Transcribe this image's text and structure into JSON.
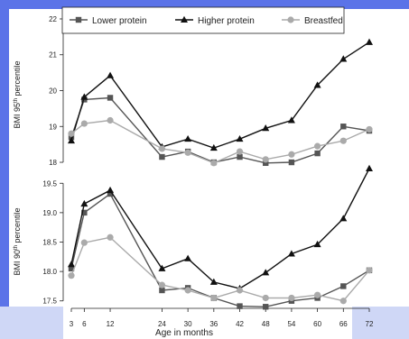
{
  "background": {
    "accent": "#5b73e8",
    "panel": "#ffffff",
    "lower_band": "#cfd7f6"
  },
  "chart_data": [
    {
      "type": "line",
      "title": "",
      "xlabel": "Age in months",
      "ylabel_main": "BMI 95",
      "ylabel_sup": "th",
      "ylabel_rest": " percentile",
      "x": [
        3,
        6,
        12,
        24,
        30,
        36,
        42,
        48,
        54,
        60,
        66,
        72
      ],
      "xticks": [
        3,
        6,
        12,
        24,
        30,
        36,
        42,
        48,
        54,
        60,
        66,
        72
      ],
      "ylim": [
        17.9,
        22.1
      ],
      "yticks": [
        18,
        19,
        20,
        21,
        22
      ],
      "legend": {
        "placement": "top",
        "entries": [
          "Lower protein",
          "Higher protein",
          "Breastfed"
        ]
      },
      "series": [
        {
          "name": "Lower protein",
          "color": "#555555",
          "marker": "square",
          "values": [
            18.7,
            19.75,
            19.8,
            18.15,
            18.3,
            18.0,
            18.15,
            17.98,
            18.0,
            18.25,
            19.0,
            18.88
          ]
        },
        {
          "name": "Higher protein",
          "color": "#111111",
          "marker": "triangle",
          "values": [
            18.6,
            19.82,
            20.42,
            18.43,
            18.65,
            18.4,
            18.65,
            18.95,
            19.17,
            20.15,
            20.88,
            21.35
          ]
        },
        {
          "name": "Breastfed",
          "color": "#aaaaaa",
          "marker": "circle",
          "values": [
            18.8,
            19.08,
            19.17,
            18.38,
            18.27,
            17.98,
            18.3,
            18.08,
            18.22,
            18.45,
            18.6,
            18.92
          ]
        }
      ]
    },
    {
      "type": "line",
      "title": "",
      "xlabel": "Age in months",
      "ylabel_main": "BMI 90",
      "ylabel_sup": "th",
      "ylabel_rest": " percentile",
      "x": [
        3,
        6,
        12,
        24,
        30,
        36,
        42,
        48,
        54,
        60,
        66,
        72
      ],
      "xticks": [
        3,
        6,
        12,
        24,
        30,
        36,
        42,
        48,
        54,
        60,
        66,
        72
      ],
      "ylim": [
        17.45,
        19.55
      ],
      "yticks": [
        17.5,
        18.0,
        18.5,
        19.0,
        19.5
      ],
      "series": [
        {
          "name": "Lower protein",
          "color": "#555555",
          "marker": "square",
          "values": [
            18.05,
            19.0,
            19.32,
            17.68,
            17.72,
            17.55,
            17.41,
            17.4,
            17.5,
            17.55,
            17.75,
            18.02
          ]
        },
        {
          "name": "Higher protein",
          "color": "#111111",
          "marker": "triangle",
          "values": [
            18.12,
            19.15,
            19.38,
            18.05,
            18.22,
            17.82,
            17.71,
            17.98,
            18.3,
            18.46,
            18.9,
            19.75
          ]
        },
        {
          "name": "Breastfed",
          "color": "#aaaaaa",
          "marker": "circle",
          "values": [
            17.93,
            18.49,
            18.58,
            17.77,
            17.68,
            17.55,
            17.68,
            17.55,
            17.55,
            17.6,
            17.5,
            18.02
          ]
        }
      ]
    }
  ]
}
